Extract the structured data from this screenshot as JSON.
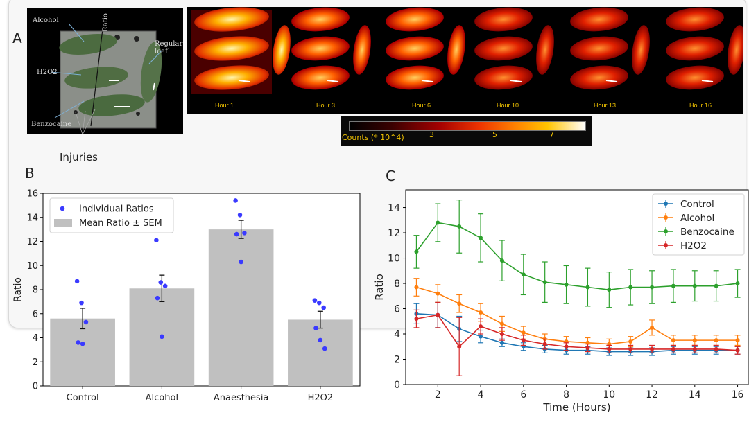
{
  "panel_labels": {
    "a": "A",
    "b": "B",
    "c": "C"
  },
  "photo": {
    "labels": {
      "alcohol": "Alcohol",
      "ratio": "Ratio",
      "regular": "Regular leaf",
      "h2o2": "H2O2",
      "benzocaine": "Benzocaine"
    },
    "callout": "Injuries"
  },
  "heatmap_strip": {
    "hours": [
      "Hour 1",
      "Hour 3",
      "Hour 6",
      "Hour 10",
      "Hour 13",
      "Hour 16"
    ],
    "colorbar": {
      "label": "Counts (* 10^4)",
      "ticks": [
        "3",
        "5",
        "7"
      ]
    }
  },
  "chart_data": [
    {
      "panel": "B",
      "type": "bar",
      "categories": [
        "Control",
        "Alcohol",
        "Anaesthesia",
        "H2O2"
      ],
      "series": [
        {
          "name": "Mean Ratio ± SEM",
          "values": [
            5.6,
            8.1,
            13.0,
            5.5
          ],
          "sem": [
            0.85,
            1.1,
            0.75,
            0.7
          ]
        }
      ],
      "points": {
        "name": "Individual Ratios",
        "values": [
          [
            8.7,
            6.9,
            5.3,
            3.6,
            3.5
          ],
          [
            12.1,
            8.6,
            8.3,
            7.3,
            4.1
          ],
          [
            15.4,
            14.2,
            12.7,
            12.6,
            10.3
          ],
          [
            7.1,
            6.9,
            6.5,
            4.8,
            3.8,
            3.1
          ]
        ]
      },
      "ylabel": "Ratio",
      "ylim": [
        0,
        16
      ],
      "yticks": [
        0,
        2,
        4,
        6,
        8,
        10,
        12,
        14,
        16
      ],
      "grid": false,
      "legend": "top-left"
    },
    {
      "panel": "C",
      "type": "line",
      "x": [
        1,
        2,
        3,
        4,
        5,
        6,
        7,
        8,
        9,
        10,
        11,
        12,
        13,
        14,
        15,
        16
      ],
      "xlabel": "Time (Hours)",
      "ylabel": "Ratio",
      "xlim": [
        0.5,
        16.5
      ],
      "ylim": [
        0,
        15.4
      ],
      "xticks": [
        2,
        4,
        6,
        8,
        10,
        12,
        14,
        16
      ],
      "yticks": [
        0,
        2,
        4,
        6,
        8,
        10,
        12,
        14
      ],
      "grid": false,
      "legend": "top-right",
      "series": [
        {
          "name": "Control",
          "color": "#1f77b4",
          "values": [
            5.6,
            5.5,
            4.4,
            3.8,
            3.3,
            3.0,
            2.8,
            2.7,
            2.7,
            2.6,
            2.6,
            2.6,
            2.7,
            2.7,
            2.7,
            2.7
          ],
          "err": [
            0.8,
            1.0,
            1.0,
            0.5,
            0.3,
            0.3,
            0.3,
            0.3,
            0.3,
            0.3,
            0.3,
            0.3,
            0.3,
            0.3,
            0.3,
            0.3
          ]
        },
        {
          "name": "Alcohol",
          "color": "#ff7f0e",
          "values": [
            7.7,
            7.2,
            6.4,
            5.7,
            4.8,
            4.1,
            3.6,
            3.4,
            3.3,
            3.2,
            3.4,
            4.5,
            3.5,
            3.5,
            3.5,
            3.5
          ],
          "err": [
            0.7,
            0.7,
            0.7,
            0.7,
            0.6,
            0.5,
            0.4,
            0.4,
            0.4,
            0.4,
            0.4,
            0.6,
            0.4,
            0.4,
            0.4,
            0.4
          ]
        },
        {
          "name": "Benzocaine",
          "color": "#2ca02c",
          "values": [
            10.5,
            12.8,
            12.5,
            11.6,
            9.8,
            8.7,
            8.1,
            7.9,
            7.7,
            7.5,
            7.7,
            7.7,
            7.8,
            7.8,
            7.8,
            8.0
          ],
          "err": [
            1.3,
            1.5,
            2.1,
            1.9,
            1.6,
            1.6,
            1.6,
            1.5,
            1.5,
            1.4,
            1.4,
            1.3,
            1.3,
            1.2,
            1.2,
            1.1
          ]
        },
        {
          "name": "H2O2",
          "color": "#d62728",
          "values": [
            5.2,
            5.5,
            3.0,
            4.6,
            4.0,
            3.5,
            3.2,
            3.0,
            2.9,
            2.8,
            2.8,
            2.8,
            2.8,
            2.8,
            2.8,
            2.7
          ],
          "err": [
            0.7,
            1.0,
            2.3,
            0.6,
            0.5,
            0.4,
            0.4,
            0.3,
            0.3,
            0.3,
            0.3,
            0.3,
            0.3,
            0.3,
            0.3,
            0.3
          ]
        }
      ]
    }
  ]
}
